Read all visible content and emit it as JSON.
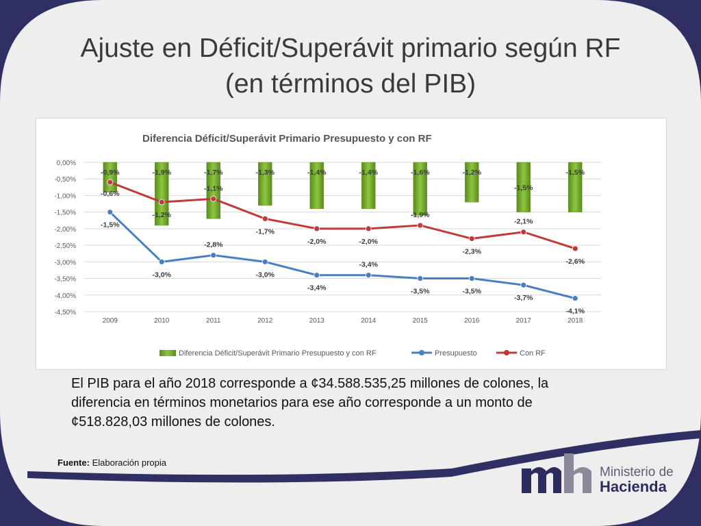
{
  "slide": {
    "title_line_1": "Ajuste en Déficit/Superávit primario según RF",
    "title_line_2": "(en términos del PIB)",
    "body_text": "El PIB para el año 2018 corresponde a ¢34.588.535,25 millones de colones, la diferencia en términos monetarios para ese año corresponde a un monto de  ¢518.828,03 millones de colones.",
    "source_label": "Fuente:",
    "source_text": " Elaboración propia",
    "logo_line_1": "Ministerio de",
    "logo_line_2": "Hacienda"
  },
  "colors": {
    "bar_fill": "#8dc63f",
    "bar_dark": "#5a8a1f",
    "presupuesto": "#4a7ec2",
    "con_rf": "#c0393b",
    "accent_frame": "#2f2f63"
  },
  "chart_data": {
    "type": "bar",
    "title": "Diferencia Déficit/Superávit Primario Presupuesto y con RF",
    "categories": [
      "2009",
      "2010",
      "2011",
      "2012",
      "2013",
      "2014",
      "2015",
      "2016",
      "2017",
      "2018"
    ],
    "y_ticks": [
      "0,00%",
      "-0,50%",
      "-1,00%",
      "-1,50%",
      "-2,00%",
      "-2,50%",
      "-3,00%",
      "-3,50%",
      "-4,00%",
      "-4,50%"
    ],
    "ylim": [
      -4.5,
      0
    ],
    "grid": true,
    "legend_position": "bottom",
    "series": [
      {
        "name": "Diferencia Déficit/Superávit Primario Presupuesto y con RF",
        "kind": "bar",
        "values": [
          -0.9,
          -1.9,
          -1.7,
          -1.3,
          -1.4,
          -1.4,
          -1.6,
          -1.2,
          -1.5,
          -1.5
        ],
        "labels": [
          "-0,9%",
          "-1,9%",
          "-1,7%",
          "-1,3%",
          "-1,4%",
          "-1,4%",
          "-1,6%",
          "-1,2%",
          "-1,5%",
          "-1,5%"
        ]
      },
      {
        "name": "Presupuesto",
        "kind": "line",
        "values": [
          -1.5,
          -3.0,
          -2.8,
          -3.0,
          -3.4,
          -3.4,
          -3.5,
          -3.5,
          -3.7,
          -4.1
        ],
        "labels": [
          "-1,5%",
          "-3,0%",
          "-2,8%",
          "-3,0%",
          "-3,4%",
          "-3,4%",
          "-3,5%",
          "-3,5%",
          "-3,7%",
          "-4,1%"
        ]
      },
      {
        "name": "Con RF",
        "kind": "line",
        "values": [
          -0.6,
          -1.2,
          -1.1,
          -1.7,
          -2.0,
          -2.0,
          -1.9,
          -2.3,
          -2.1,
          -2.6
        ],
        "labels": [
          "-0,6%",
          "-1,2%",
          "-1,1%",
          "-1,7%",
          "-2,0%",
          "-2,0%",
          "-1,9%",
          "-2,3%",
          "-2,1%",
          "-2,6%"
        ]
      }
    ]
  }
}
